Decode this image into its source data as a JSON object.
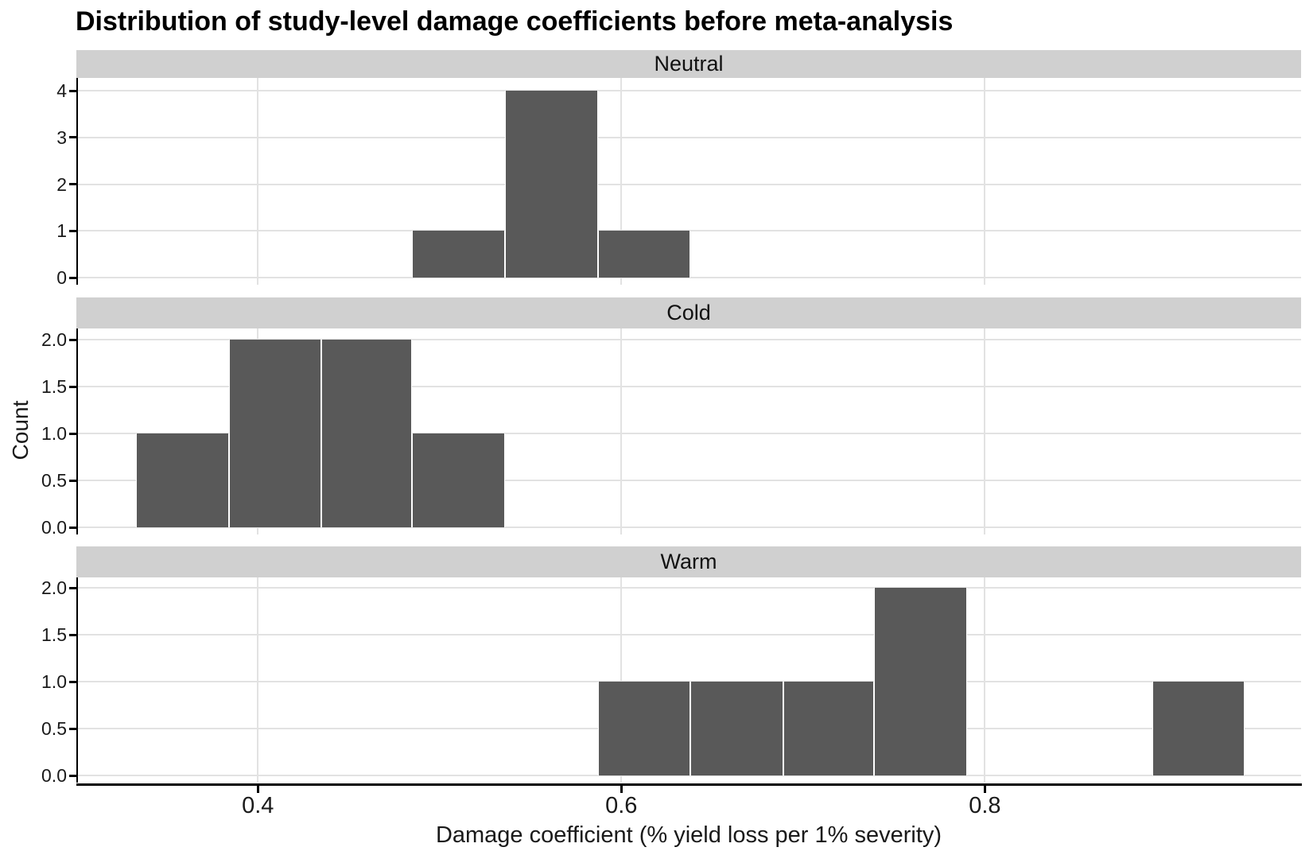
{
  "title": "Distribution of study-level damage coefficients before meta-analysis",
  "x_axis": {
    "label": "Damage coefficient (% yield loss per 1% severity)",
    "tick_labels": [
      "0.4",
      "0.6",
      "0.8"
    ],
    "tick_values": [
      0.4,
      0.6,
      0.8
    ],
    "domain": [
      0.301,
      0.974
    ]
  },
  "y_axis": {
    "label": "Count"
  },
  "colors": {
    "bar_fill": "#595959",
    "bar_separator": "#ffffff",
    "strip_background": "#d0d0d0",
    "gridline": "#e2e2e2",
    "axis_line": "#000000",
    "text": "#1a1a1a",
    "title_text": "#000000"
  },
  "chart_data": {
    "type": "bar",
    "subtype": "faceted-histogram",
    "title": "Distribution of study-level damage coefficients before meta-analysis",
    "xlabel": "Damage coefficient (% yield loss per 1% severity)",
    "ylabel": "Count",
    "grid": "major-only",
    "legend": "none",
    "binwidth": 0.051,
    "x_domain": [
      0.301,
      0.974
    ],
    "x_ticks": {
      "values": [
        0.4,
        0.6,
        0.8
      ],
      "labels": [
        "0.4",
        "0.6",
        "0.8"
      ]
    },
    "facets": [
      {
        "label": "Neutral",
        "ylim": [
          0,
          4.2
        ],
        "y_ticks": {
          "values": [
            0,
            1,
            2,
            3,
            4
          ],
          "labels": [
            "0",
            "1",
            "2",
            "3",
            "4"
          ]
        },
        "bins": [
          {
            "x0": 0.485,
            "x1": 0.536,
            "count": 1
          },
          {
            "x0": 0.536,
            "x1": 0.587,
            "count": 4
          },
          {
            "x0": 0.587,
            "x1": 0.638,
            "count": 1
          }
        ]
      },
      {
        "label": "Cold",
        "ylim": [
          0,
          2.1
        ],
        "y_ticks": {
          "values": [
            0,
            0.5,
            1,
            1.5,
            2
          ],
          "labels": [
            "0.0",
            "0.5",
            "1.0",
            "1.5",
            "2.0"
          ]
        },
        "bins": [
          {
            "x0": 0.333,
            "x1": 0.384,
            "count": 1
          },
          {
            "x0": 0.384,
            "x1": 0.435,
            "count": 2
          },
          {
            "x0": 0.435,
            "x1": 0.485,
            "count": 2
          },
          {
            "x0": 0.485,
            "x1": 0.536,
            "count": 1
          }
        ]
      },
      {
        "label": "Warm",
        "ylim": [
          0,
          2.1
        ],
        "y_ticks": {
          "values": [
            0,
            0.5,
            1,
            1.5,
            2
          ],
          "labels": [
            "0.0",
            "0.5",
            "1.0",
            "1.5",
            "2.0"
          ]
        },
        "bins": [
          {
            "x0": 0.587,
            "x1": 0.638,
            "count": 1
          },
          {
            "x0": 0.638,
            "x1": 0.689,
            "count": 1
          },
          {
            "x0": 0.689,
            "x1": 0.739,
            "count": 1
          },
          {
            "x0": 0.739,
            "x1": 0.79,
            "count": 2
          },
          {
            "x0": 0.892,
            "x1": 0.943,
            "count": 1
          }
        ]
      }
    ]
  }
}
